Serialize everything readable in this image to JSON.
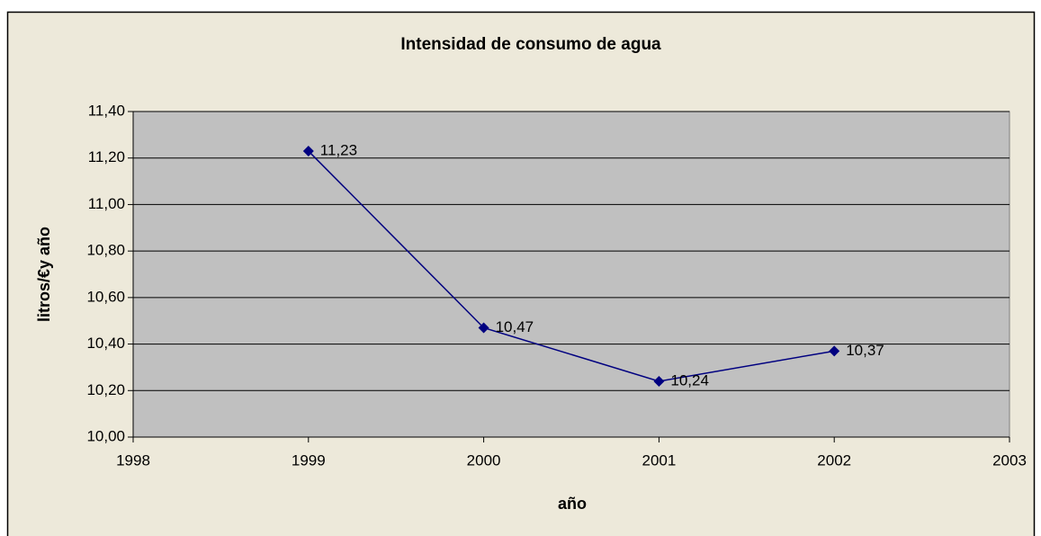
{
  "chart_data": {
    "type": "line",
    "title": "Intensidad de consumo de agua",
    "x_label": "año",
    "y_label": "litros/€y año",
    "x": [
      1999,
      2000,
      2001,
      2002
    ],
    "values": [
      11.23,
      10.47,
      10.24,
      10.37
    ],
    "value_labels": [
      "11,23",
      "10,47",
      "10,24",
      "10,37"
    ],
    "color": "#000080",
    "xlim": [
      1998,
      2003
    ],
    "xticks": [
      1998,
      1999,
      2000,
      2001,
      2002,
      2003
    ],
    "ylim": [
      10,
      11.4
    ],
    "yticks": [
      {
        "value": 10,
        "label": "10,00"
      },
      {
        "value": 10.2,
        "label": "10,20"
      },
      {
        "value": 10.4,
        "label": "10,40"
      },
      {
        "value": 10.6,
        "label": "10,60"
      },
      {
        "value": 10.8,
        "label": "10,80"
      },
      {
        "value": 11,
        "label": "11,00"
      },
      {
        "value": 11.2,
        "label": "11,20"
      },
      {
        "value": 11.4,
        "label": "11,40"
      }
    ],
    "grid": true
  }
}
